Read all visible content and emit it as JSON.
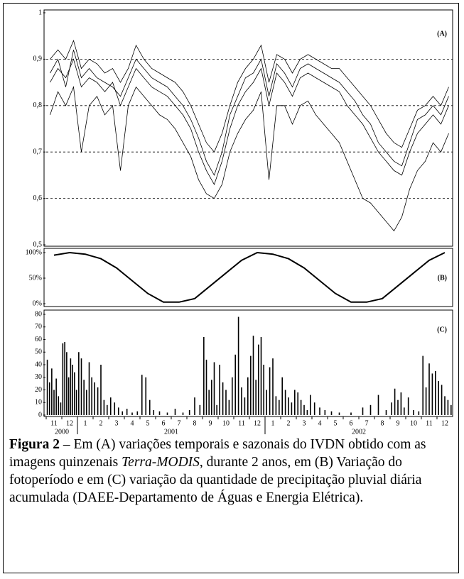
{
  "chart_data": [
    {
      "type": "line",
      "annotation": "(A)",
      "ylim": [
        0.5,
        1
      ],
      "yticks": [
        {
          "value": 0.5,
          "label": "0,5"
        },
        {
          "value": 0.6,
          "label": "0,6"
        },
        {
          "value": 0.7,
          "label": "0,7"
        },
        {
          "value": 0.8,
          "label": "0,8"
        },
        {
          "value": 0.9,
          "label": "0,9"
        },
        1
      ],
      "grid": "dashed",
      "series": [
        {
          "color": "#000000",
          "values": [
            0.85,
            0.88,
            0.86,
            0.9,
            0.84,
            0.86,
            0.85,
            0.83,
            0.85,
            0.8,
            0.84,
            0.88,
            0.86,
            0.84,
            0.83,
            0.82,
            0.8,
            0.78,
            0.75,
            0.7,
            0.66,
            0.63,
            0.68,
            0.75,
            0.8,
            0.83,
            0.85,
            0.88,
            0.8,
            0.87,
            0.85,
            0.82,
            0.86,
            0.87,
            0.86,
            0.85,
            0.84,
            0.83,
            0.8,
            0.78,
            0.76,
            0.73,
            0.7,
            0.68,
            0.66,
            0.65,
            0.7,
            0.74,
            0.76,
            0.78,
            0.76,
            0.8
          ]
        },
        {
          "color": "#000000",
          "values": [
            0.9,
            0.92,
            0.9,
            0.94,
            0.88,
            0.9,
            0.89,
            0.87,
            0.88,
            0.85,
            0.88,
            0.93,
            0.9,
            0.88,
            0.87,
            0.86,
            0.85,
            0.83,
            0.8,
            0.76,
            0.72,
            0.7,
            0.74,
            0.8,
            0.85,
            0.88,
            0.9,
            0.93,
            0.85,
            0.91,
            0.9,
            0.87,
            0.9,
            0.91,
            0.9,
            0.89,
            0.88,
            0.88,
            0.86,
            0.84,
            0.82,
            0.8,
            0.77,
            0.74,
            0.72,
            0.71,
            0.75,
            0.79,
            0.8,
            0.82,
            0.8,
            0.84
          ]
        },
        {
          "color": "#000000",
          "values": [
            0.78,
            0.83,
            0.8,
            0.84,
            0.7,
            0.8,
            0.82,
            0.78,
            0.8,
            0.66,
            0.8,
            0.84,
            0.82,
            0.8,
            0.78,
            0.77,
            0.75,
            0.72,
            0.69,
            0.64,
            0.61,
            0.6,
            0.63,
            0.7,
            0.74,
            0.77,
            0.79,
            0.83,
            0.64,
            0.8,
            0.8,
            0.76,
            0.8,
            0.81,
            0.78,
            0.76,
            0.74,
            0.72,
            0.68,
            0.64,
            0.6,
            0.59,
            0.57,
            0.55,
            0.53,
            0.56,
            0.62,
            0.66,
            0.68,
            0.72,
            0.7,
            0.74
          ]
        },
        {
          "color": "#000000",
          "values": [
            0.87,
            0.9,
            0.84,
            0.92,
            0.86,
            0.88,
            0.86,
            0.85,
            0.84,
            0.82,
            0.86,
            0.9,
            0.88,
            0.86,
            0.85,
            0.84,
            0.82,
            0.8,
            0.77,
            0.73,
            0.68,
            0.65,
            0.7,
            0.78,
            0.82,
            0.86,
            0.87,
            0.9,
            0.82,
            0.89,
            0.87,
            0.84,
            0.88,
            0.89,
            0.88,
            0.87,
            0.86,
            0.85,
            0.83,
            0.81,
            0.78,
            0.76,
            0.72,
            0.7,
            0.68,
            0.67,
            0.72,
            0.77,
            0.78,
            0.8,
            0.78,
            0.82
          ]
        }
      ]
    },
    {
      "type": "line",
      "annotation": "(B)",
      "ylim": [
        0,
        100
      ],
      "yticks": [
        {
          "value": 0,
          "label": "0%"
        },
        {
          "value": 50,
          "label": "50%"
        },
        {
          "value": 100,
          "label": "100%"
        }
      ],
      "series": [
        {
          "color": "#000000",
          "values": [
            95,
            100,
            97,
            88,
            70,
            45,
            20,
            3,
            3,
            10,
            35,
            60,
            85,
            100,
            97,
            88,
            70,
            45,
            20,
            3,
            3,
            10,
            35,
            60,
            85,
            100
          ]
        }
      ]
    },
    {
      "type": "bar",
      "annotation": "(C)",
      "ylim": [
        0,
        80
      ],
      "yticks": [
        0,
        10,
        20,
        30,
        40,
        50,
        60,
        70,
        80
      ],
      "color": "#000000",
      "categories": [
        "11",
        "12",
        "1",
        "2",
        "3",
        "4",
        "5",
        "6",
        "7",
        "8",
        "9",
        "10",
        "11",
        "12",
        "1",
        "2",
        "3",
        "4",
        "5",
        "6",
        "7",
        "8",
        "9",
        "10",
        "11",
        "12"
      ],
      "years": [
        "2000",
        "2001",
        "2002"
      ],
      "values": [
        [
          44,
          26,
          37,
          20,
          29,
          15,
          10
        ],
        [
          57,
          58,
          50,
          30,
          45,
          40,
          34,
          20
        ],
        [
          50,
          45,
          28,
          20,
          42,
          30
        ],
        [
          26,
          22,
          40,
          12,
          8
        ],
        [
          14,
          10,
          6,
          3
        ],
        [
          5,
          2,
          3
        ],
        [
          32,
          30,
          12,
          4
        ],
        [
          3,
          2
        ],
        [
          5,
          2
        ],
        [
          4,
          14,
          8
        ],
        [
          62,
          44,
          20,
          28,
          42,
          8
        ],
        [
          40,
          26,
          20,
          12,
          30
        ],
        [
          48,
          78,
          22,
          14,
          30
        ],
        [
          47,
          63,
          28,
          56,
          62,
          40
        ],
        [
          20,
          38,
          45,
          15,
          12
        ],
        [
          30,
          20,
          14,
          10,
          20
        ],
        [
          18,
          12,
          8,
          4,
          16
        ],
        [
          10,
          6,
          4
        ],
        [
          3,
          2
        ],
        [
          2
        ],
        [
          6,
          8
        ],
        [
          16,
          4
        ],
        [
          10,
          21,
          12,
          18,
          6
        ],
        [
          14,
          4,
          3
        ],
        [
          47,
          22,
          41,
          33,
          35
        ],
        [
          27,
          24,
          15,
          12,
          8
        ]
      ]
    }
  ],
  "caption": {
    "label": "Figura 2",
    "text1": " – Em (A) variações temporais e sazonais do IVDN obtido com as imagens quinzenais ",
    "italic": "Terra-MODIS",
    "text2": ", durante 2 anos, em (B) Variação do fotoperíodo e em (C) variação da quantidade de precipitação pluvial diária acumulada (DAEE-Departamento de Águas e Energia Elétrica)."
  }
}
